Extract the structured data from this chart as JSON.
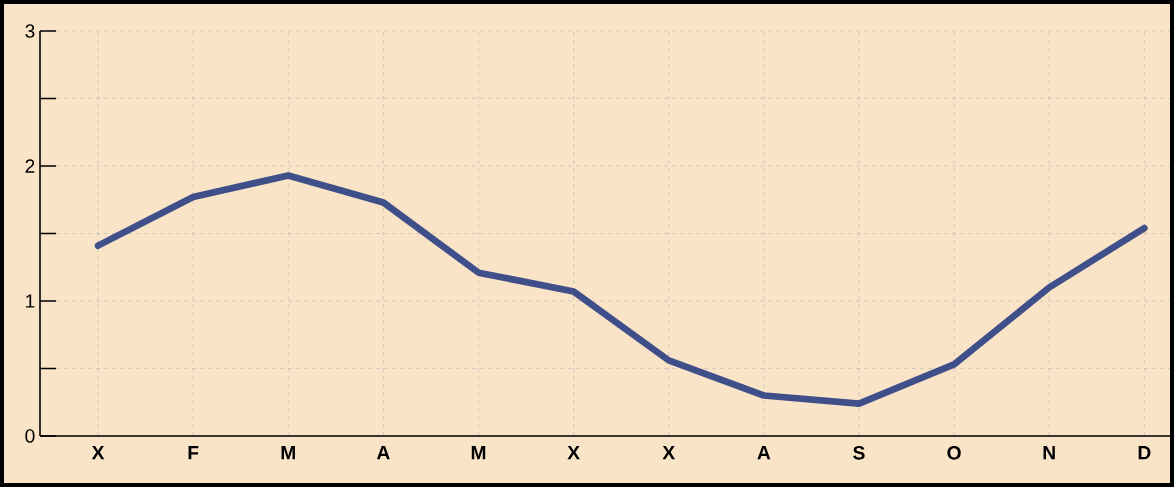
{
  "chart_data": {
    "type": "line",
    "categories": [
      "X",
      "F",
      "M",
      "A",
      "M",
      "X",
      "X",
      "A",
      "S",
      "O",
      "N",
      "D"
    ],
    "series": [
      {
        "color": "#3f4f8a",
        "values": [
          1.41,
          1.77,
          1.93,
          1.73,
          1.21,
          1.07,
          0.56,
          0.3,
          0.24,
          0.53,
          1.1,
          1.54
        ]
      }
    ],
    "ylim": [
      0,
      3
    ],
    "yticks": [
      0,
      {
        "value": 0.5,
        "label": null
      },
      1,
      {
        "value": 1.5,
        "label": null
      },
      2,
      {
        "value": 2.5,
        "label": null
      },
      3
    ],
    "grid": true,
    "marker": "none",
    "line_style": "solid",
    "legend": false
  }
}
